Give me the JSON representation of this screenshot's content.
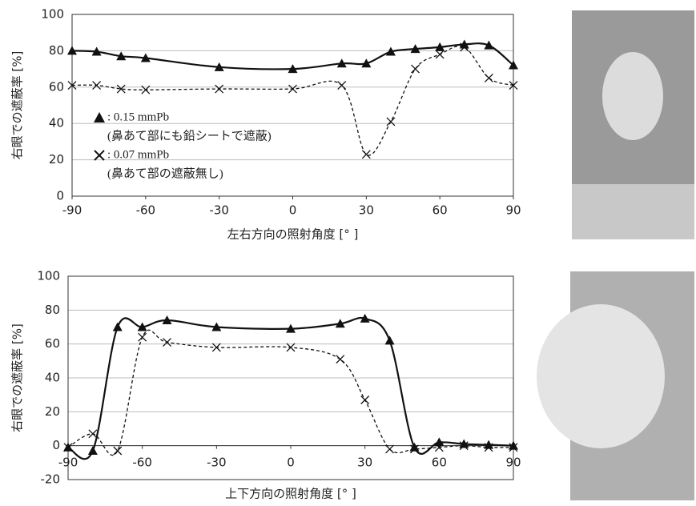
{
  "chart_data": [
    {
      "type": "line",
      "x_label": "左右方向の照射角度 [° ]",
      "y_label": "右眼での遮蔽率 [%]",
      "xlim": [
        -90,
        90
      ],
      "ylim": [
        0,
        100
      ],
      "xticks": [
        -90,
        -60,
        -30,
        0,
        30,
        60,
        90
      ],
      "yticks": [
        0,
        20,
        40,
        60,
        80,
        100
      ],
      "grid": true,
      "series": [
        {
          "name": ": 0.15 mmPb",
          "note": "(鼻あて部にも鉛シートで遮蔽)",
          "color": "#111111",
          "marker": "triangle",
          "dash": false,
          "x": [
            -90,
            -80,
            -70,
            -60,
            -30,
            0,
            20,
            30,
            40,
            50,
            60,
            70,
            80,
            90
          ],
          "values": [
            80,
            79.5,
            77,
            76,
            71,
            70,
            73,
            73,
            79.5,
            81,
            82,
            83.5,
            83,
            72
          ]
        },
        {
          "name": ": 0.07 mmPb",
          "note": "(鼻あて部の遮蔽無し)",
          "color": "#111111",
          "marker": "x",
          "dash": true,
          "x": [
            -90,
            -80,
            -70,
            -60,
            -30,
            0,
            20,
            30,
            40,
            50,
            60,
            70,
            80,
            90
          ],
          "values": [
            61,
            61,
            59,
            58.5,
            59,
            59,
            61,
            23,
            41,
            70,
            78,
            82,
            65,
            61
          ]
        }
      ]
    },
    {
      "type": "line",
      "x_label": "上下方向の照射角度 [° ]",
      "y_label": "右眼での遮蔽率 [%]",
      "xlim": [
        -90,
        90
      ],
      "ylim": [
        -20,
        100
      ],
      "xticks": [
        -90,
        -60,
        -30,
        0,
        30,
        60,
        90
      ],
      "yticks": [
        -20,
        0,
        20,
        40,
        60,
        80,
        100
      ],
      "grid": true,
      "series": [
        {
          "color": "#111111",
          "marker": "triangle",
          "dash": false,
          "x": [
            -90,
            -80,
            -70,
            -60,
            -50,
            -30,
            0,
            20,
            30,
            40,
            50,
            60,
            70,
            80,
            90
          ],
          "values": [
            -1,
            -3,
            70,
            70,
            74,
            70,
            69,
            72,
            75,
            62,
            -1,
            2,
            1,
            0.5,
            0
          ]
        },
        {
          "color": "#111111",
          "marker": "x",
          "dash": true,
          "x": [
            -90,
            -80,
            -70,
            -60,
            -50,
            -30,
            0,
            20,
            30,
            40,
            50,
            60,
            70,
            80,
            90
          ],
          "values": [
            -1,
            7,
            -3,
            64,
            61,
            58,
            58,
            51,
            27,
            -2,
            -2,
            -1,
            0,
            -1,
            -1
          ]
        }
      ]
    }
  ]
}
